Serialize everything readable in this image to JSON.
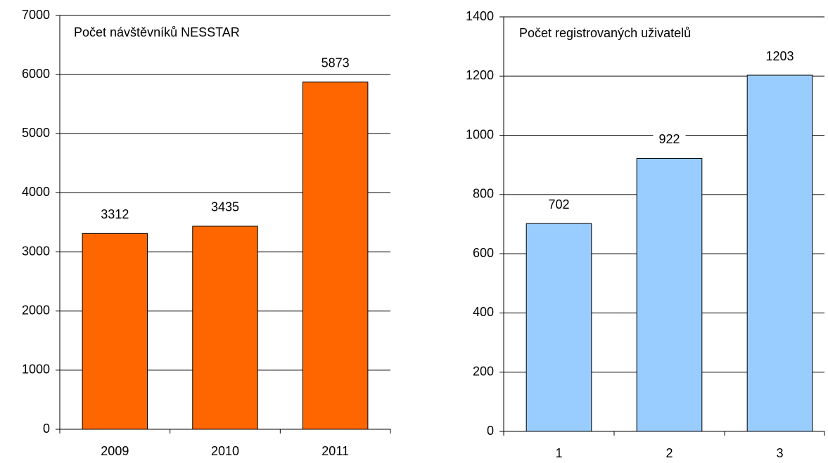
{
  "chart_data": [
    {
      "type": "bar",
      "title": "Počet návštěvníků NESSTAR",
      "categories": [
        "2009",
        "2010",
        "2011"
      ],
      "values": [
        3312,
        3435,
        5873
      ],
      "color": "#ff6600",
      "ylim": [
        0,
        7000
      ],
      "yticks": [
        0,
        1000,
        2000,
        3000,
        4000,
        5000,
        6000,
        7000
      ],
      "grid": true
    },
    {
      "type": "bar",
      "title": "Počet registrovaných uživatelů",
      "categories": [
        "1",
        "2",
        "3"
      ],
      "values": [
        702,
        922,
        1203
      ],
      "color": "#99ccff",
      "ylim": [
        0,
        1400
      ],
      "yticks": [
        0,
        200,
        400,
        600,
        800,
        1000,
        1200,
        1400
      ],
      "grid": true
    }
  ]
}
